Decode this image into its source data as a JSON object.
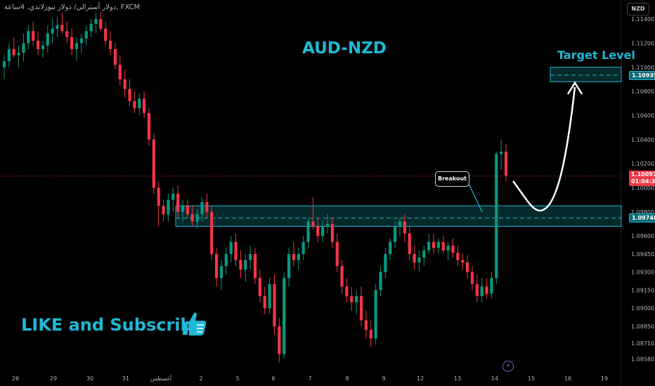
{
  "header": {
    "symbol_line": "FXCM ,دولار أسترالي/ دولار نيوزلاندي, 4ساعة"
  },
  "currency_badge": "NZD",
  "title": "AUD-NZD",
  "target_label": "Target Level",
  "breakout_label": "Breakout",
  "cta_text": "LIKE and Subscribe",
  "price_tags": {
    "target": "1.10935",
    "zone": "1.09748",
    "current": "1.10097",
    "countdown": "01:04:33"
  },
  "colors": {
    "up": "#089981",
    "down": "#f23645",
    "accent": "#1fb8d6",
    "zone_fill": "#0b4a50"
  },
  "icons": {
    "thumb": "thumbs-up-icon",
    "bolt": "lightning-icon"
  },
  "chart_data": {
    "type": "candlestick",
    "ylim": [
      1.085,
      1.115
    ],
    "y_ticks": [
      "1.11400",
      "1.11200",
      "1.11000",
      "1.10800",
      "1.10600",
      "1.10400",
      "1.10200",
      "1.10000",
      "1.09800",
      "1.09600",
      "1.09450",
      "1.09300",
      "1.09150",
      "1.09000",
      "1.08850",
      "1.08710",
      "1.08580"
    ],
    "x_ticks": [
      "26",
      "29",
      "30",
      "31",
      "أغسطس",
      "2",
      "5",
      "6",
      "7",
      "8",
      "9",
      "12",
      "13",
      "14",
      "15",
      "16",
      "19"
    ],
    "zones": [
      {
        "name": "resistance-support",
        "low": 1.0968,
        "high": 1.0985,
        "mid": 1.09748
      },
      {
        "name": "target",
        "low": 1.1088,
        "high": 1.11,
        "mid": 1.10935
      }
    ],
    "current_price": 1.10097,
    "candles": [
      [
        1.11,
        1.111,
        1.109,
        1.1105
      ],
      [
        1.1105,
        1.112,
        1.11,
        1.1115
      ],
      [
        1.1115,
        1.1125,
        1.1108,
        1.111
      ],
      [
        1.111,
        1.1118,
        1.11,
        1.1112
      ],
      [
        1.1112,
        1.1128,
        1.1105,
        1.112
      ],
      [
        1.112,
        1.1135,
        1.1115,
        1.113
      ],
      [
        1.113,
        1.1138,
        1.1118,
        1.1122
      ],
      [
        1.1122,
        1.113,
        1.111,
        1.1115
      ],
      [
        1.1115,
        1.1122,
        1.1108,
        1.1118
      ],
      [
        1.1118,
        1.1135,
        1.1112,
        1.1128
      ],
      [
        1.1128,
        1.114,
        1.112,
        1.1132
      ],
      [
        1.1132,
        1.1142,
        1.1125,
        1.1135
      ],
      [
        1.1135,
        1.1145,
        1.1128,
        1.113
      ],
      [
        1.113,
        1.1138,
        1.112,
        1.1125
      ],
      [
        1.1125,
        1.1132,
        1.111,
        1.1115
      ],
      [
        1.1115,
        1.1125,
        1.1105,
        1.112
      ],
      [
        1.112,
        1.1128,
        1.1112,
        1.1124
      ],
      [
        1.1124,
        1.1135,
        1.1118,
        1.113
      ],
      [
        1.113,
        1.114,
        1.1125,
        1.1136
      ],
      [
        1.1136,
        1.1145,
        1.1128,
        1.114
      ],
      [
        1.114,
        1.1146,
        1.113,
        1.1132
      ],
      [
        1.1132,
        1.1138,
        1.1118,
        1.1122
      ],
      [
        1.1122,
        1.113,
        1.111,
        1.1115
      ],
      [
        1.1115,
        1.112,
        1.1098,
        1.1102
      ],
      [
        1.1102,
        1.111,
        1.1085,
        1.109
      ],
      [
        1.109,
        1.1098,
        1.1075,
        1.1082
      ],
      [
        1.1082,
        1.109,
        1.1068,
        1.1072
      ],
      [
        1.1072,
        1.108,
        1.1062,
        1.1066
      ],
      [
        1.1066,
        1.1078,
        1.106,
        1.1074
      ],
      [
        1.1074,
        1.108,
        1.1058,
        1.1062
      ],
      [
        1.1062,
        1.1066,
        1.1035,
        1.104
      ],
      [
        1.104,
        1.1045,
        1.0995,
        1.1
      ],
      [
        1.1,
        1.1005,
        1.0968,
        1.0985
      ],
      [
        1.0985,
        1.099,
        1.0972,
        1.0978
      ],
      [
        1.0978,
        1.0995,
        1.0972,
        1.099
      ],
      [
        1.099,
        1.1,
        1.098,
        1.0995
      ],
      [
        1.0995,
        1.1002,
        1.0975,
        1.098
      ],
      [
        1.098,
        1.099,
        1.0972,
        1.0985
      ],
      [
        1.0985,
        1.099,
        1.0975,
        1.0978
      ],
      [
        1.0978,
        1.0985,
        1.0968,
        1.0972
      ],
      [
        1.0972,
        1.0982,
        1.0966,
        1.0978
      ],
      [
        1.0978,
        1.0992,
        1.0972,
        1.0988
      ],
      [
        1.0988,
        1.0995,
        1.0975,
        1.098
      ],
      [
        1.098,
        1.0985,
        1.094,
        1.0945
      ],
      [
        1.0945,
        1.095,
        1.0918,
        1.0925
      ],
      [
        1.0925,
        1.094,
        1.0915,
        1.0935
      ],
      [
        1.0935,
        1.095,
        1.0928,
        1.0945
      ],
      [
        1.0945,
        1.096,
        1.0938,
        1.0955
      ],
      [
        1.0955,
        1.0962,
        1.0935,
        1.094
      ],
      [
        1.094,
        1.0948,
        1.0925,
        1.0932
      ],
      [
        1.0932,
        1.0945,
        1.0922,
        1.094
      ],
      [
        1.094,
        1.0952,
        1.0932,
        1.0945
      ],
      [
        1.0945,
        1.095,
        1.092,
        1.0925
      ],
      [
        1.0925,
        1.0932,
        1.0905,
        1.091
      ],
      [
        1.091,
        1.0918,
        1.0895,
        1.09
      ],
      [
        1.09,
        1.0925,
        1.0895,
        1.092
      ],
      [
        1.092,
        1.0928,
        1.0878,
        1.0885
      ],
      [
        1.0885,
        1.0892,
        1.0855,
        1.0862
      ],
      [
        1.0862,
        1.093,
        1.0858,
        1.0925
      ],
      [
        1.0925,
        1.095,
        1.0918,
        1.0945
      ],
      [
        1.0945,
        1.0955,
        1.0935,
        1.094
      ],
      [
        1.094,
        1.095,
        1.0932,
        1.0945
      ],
      [
        1.0945,
        1.096,
        1.094,
        1.0955
      ],
      [
        1.0955,
        1.0975,
        1.095,
        1.0972
      ],
      [
        1.0972,
        1.0992,
        1.0965,
        1.0968
      ],
      [
        1.0968,
        1.0975,
        1.0955,
        1.096
      ],
      [
        1.096,
        1.0972,
        1.0955,
        1.0968
      ],
      [
        1.0968,
        1.0978,
        1.0962,
        1.097
      ],
      [
        1.097,
        1.0975,
        1.095,
        1.0955
      ],
      [
        1.0955,
        1.0962,
        1.093,
        1.0935
      ],
      [
        1.0935,
        1.094,
        1.0912,
        1.0918
      ],
      [
        1.0918,
        1.0925,
        1.0905,
        1.091
      ],
      [
        1.091,
        1.0918,
        1.0898,
        1.0905
      ],
      [
        1.0905,
        1.0915,
        1.0895,
        1.091
      ],
      [
        1.091,
        1.0918,
        1.0885,
        1.089
      ],
      [
        1.089,
        1.0898,
        1.0875,
        1.0882
      ],
      [
        1.0882,
        1.089,
        1.0868,
        1.0875
      ],
      [
        1.0875,
        1.092,
        1.087,
        1.0915
      ],
      [
        1.0915,
        1.0935,
        1.091,
        1.093
      ],
      [
        1.093,
        1.095,
        1.0925,
        1.0945
      ],
      [
        1.0945,
        1.0958,
        1.094,
        1.0955
      ],
      [
        1.0955,
        1.0972,
        1.095,
        1.0968
      ],
      [
        1.0968,
        1.0975,
        1.096,
        1.0972
      ],
      [
        1.0972,
        1.0978,
        1.0955,
        1.0962
      ],
      [
        1.0962,
        1.0968,
        1.094,
        1.0945
      ],
      [
        1.0945,
        1.0952,
        1.0932,
        1.0938
      ],
      [
        1.0938,
        1.0948,
        1.093,
        1.0942
      ],
      [
        1.0942,
        1.0952,
        1.0935,
        1.0948
      ],
      [
        1.0948,
        1.0962,
        1.0945,
        1.0955
      ],
      [
        1.0955,
        1.0962,
        1.0945,
        1.095
      ],
      [
        1.095,
        1.0958,
        1.0945,
        1.0955
      ],
      [
        1.0955,
        1.096,
        1.0945,
        1.0948
      ],
      [
        1.0948,
        1.0955,
        1.094,
        1.0952
      ],
      [
        1.0952,
        1.0958,
        1.0942,
        1.0946
      ],
      [
        1.0946,
        1.0952,
        1.0935,
        1.094
      ],
      [
        1.094,
        1.0945,
        1.0932,
        1.0938
      ],
      [
        1.0938,
        1.0944,
        1.0925,
        1.093
      ],
      [
        1.093,
        1.0935,
        1.0915,
        1.092
      ],
      [
        1.092,
        1.0928,
        1.0905,
        1.091
      ],
      [
        1.091,
        1.0925,
        1.0905,
        1.0918
      ],
      [
        1.0918,
        1.0925,
        1.0908,
        1.0912
      ],
      [
        1.0912,
        1.093,
        1.0908,
        1.0925
      ],
      [
        1.0925,
        1.103,
        1.092,
        1.1028
      ],
      [
        1.1028,
        1.104,
        1.1015,
        1.103
      ],
      [
        1.103,
        1.1036,
        1.1005,
        1.101
      ]
    ]
  }
}
